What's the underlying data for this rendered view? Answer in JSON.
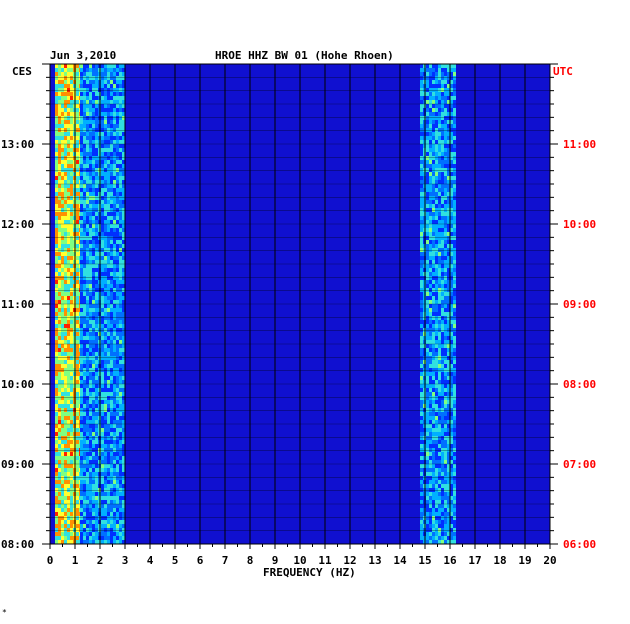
{
  "chart_data": {
    "type": "heatmap",
    "date": "Jun 3,2010",
    "station_title": "HROE HHZ BW 01 (Hohe Rhoen)",
    "left_zone_label": "CES",
    "right_zone_label": "UTC",
    "xlabel": "FREQUENCY (HZ)",
    "xlim": [
      0,
      20
    ],
    "x_ticks": [
      "0",
      "1",
      "2",
      "3",
      "4",
      "5",
      "6",
      "7",
      "8",
      "9",
      "10",
      "11",
      "12",
      "13",
      "14",
      "15",
      "16",
      "17",
      "18",
      "19",
      "20"
    ],
    "left_time_ticks": [
      {
        "label": "08:00",
        "hour": 8
      },
      {
        "label": "09:00",
        "hour": 9
      },
      {
        "label": "10:00",
        "hour": 10
      },
      {
        "label": "11:00",
        "hour": 11
      },
      {
        "label": "12:00",
        "hour": 12
      },
      {
        "label": "13:00",
        "hour": 13
      }
    ],
    "right_time_ticks": [
      {
        "label": "06:00",
        "hour": 8
      },
      {
        "label": "07:00",
        "hour": 9
      },
      {
        "label": "08:00",
        "hour": 10
      },
      {
        "label": "09:00",
        "hour": 11
      },
      {
        "label": "10:00",
        "hour": 12
      },
      {
        "label": "11:00",
        "hour": 13
      }
    ],
    "time_range_hours_ces": [
      8,
      14
    ],
    "energy_bands_hz": [
      {
        "from": 0.2,
        "to": 1.2,
        "level": "high"
      },
      {
        "from": 1.2,
        "to": 3.0,
        "level": "medium"
      },
      {
        "from": 14.8,
        "to": 16.2,
        "level": "medium"
      }
    ],
    "colors": {
      "background_field": "#1010d0",
      "grid": "#000000",
      "frame": "#000000",
      "utc_labels": "#ff0000",
      "text": "#000000"
    },
    "corner_mark": "*"
  }
}
